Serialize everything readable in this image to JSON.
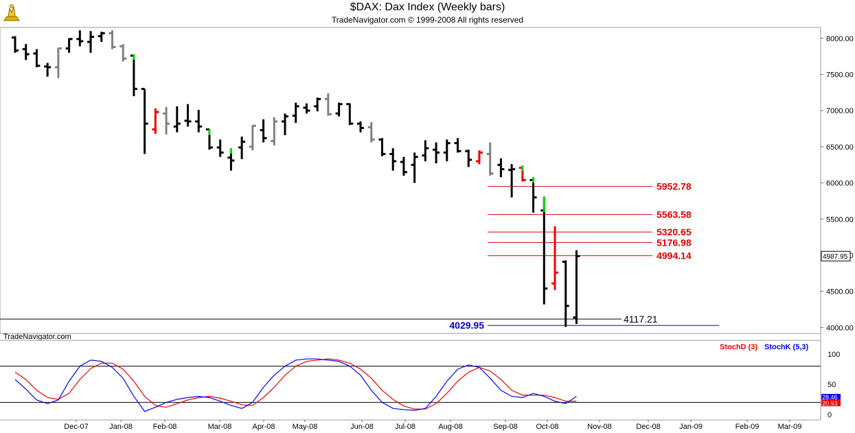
{
  "watermark": "TradeNavigator.com",
  "colors": {
    "up_bar": "#000000",
    "neutral_bar": "#808080",
    "red_bar": "#ee0000",
    "green_mark": "#00dd00",
    "level_red": "#dd0000",
    "level_blue": "#0000cc",
    "stoch_d": "#ee0000",
    "stoch_k": "#0000ee",
    "last_price_box": "#ffffff"
  },
  "chart_data": {
    "title": "$DAX:  Dax Index  (Weekly bars)",
    "subtitle": "TradeNavigator.com © 1999-2008 All rights reserved",
    "type": "ohlc",
    "price_axis": {
      "ticks": [
        "8000.00",
        "7500.00",
        "7000.00",
        "6500.00",
        "6000.00",
        "5500.00",
        "5000.00",
        "4500.00",
        "4000.00"
      ],
      "tick_values": [
        8000,
        7500,
        7000,
        6500,
        6000,
        5500,
        5000,
        4500,
        4000
      ],
      "ylim": [
        3975,
        8150
      ]
    },
    "last_price": "4987.95",
    "x_axis": {
      "labels": [
        "Dec-07",
        "Jan-08",
        "Feb-08",
        "Mar-08",
        "Apr-08",
        "May-08",
        "Jun-08",
        "Jul-08",
        "Aug-08",
        "Sep-08",
        "Oct-08",
        "Nov-08",
        "Dec-08",
        "Jan-09",
        "Feb-09",
        "Mar-09"
      ]
    },
    "bars": [
      {
        "o": 8010,
        "h": 8030,
        "l": 7800,
        "c": 7830,
        "color": "black"
      },
      {
        "o": 7850,
        "h": 7920,
        "l": 7700,
        "c": 7780,
        "color": "black"
      },
      {
        "o": 7790,
        "h": 7850,
        "l": 7600,
        "c": 7620,
        "color": "black"
      },
      {
        "o": 7610,
        "h": 7660,
        "l": 7470,
        "c": 7600,
        "color": "black"
      },
      {
        "o": 7600,
        "h": 7870,
        "l": 7450,
        "c": 7860,
        "color": "gray"
      },
      {
        "o": 7860,
        "h": 8000,
        "l": 7800,
        "c": 7990,
        "color": "black"
      },
      {
        "o": 7990,
        "h": 8110,
        "l": 7890,
        "c": 7960,
        "color": "black"
      },
      {
        "o": 7950,
        "h": 8100,
        "l": 7800,
        "c": 8020,
        "color": "black"
      },
      {
        "o": 8030,
        "h": 8090,
        "l": 7950,
        "c": 8070,
        "color": "black"
      },
      {
        "o": 8070,
        "h": 8110,
        "l": 7850,
        "c": 7880,
        "color": "gray"
      },
      {
        "o": 7890,
        "h": 7920,
        "l": 7680,
        "c": 7720,
        "color": "gray"
      },
      {
        "o": 7760,
        "h": 7780,
        "l": 7200,
        "c": 7300,
        "color": "black"
      },
      {
        "o": 7300,
        "h": 7300,
        "l": 6400,
        "c": 6820,
        "color": "black"
      },
      {
        "o": 6740,
        "h": 7030,
        "l": 6680,
        "c": 6980,
        "color": "red"
      },
      {
        "o": 6960,
        "h": 7050,
        "l": 6670,
        "c": 6820,
        "color": "gray"
      },
      {
        "o": 6780,
        "h": 7060,
        "l": 6700,
        "c": 6820,
        "color": "black"
      },
      {
        "o": 6860,
        "h": 7090,
        "l": 6780,
        "c": 6850,
        "color": "black"
      },
      {
        "o": 6850,
        "h": 7010,
        "l": 6700,
        "c": 6780,
        "color": "black"
      },
      {
        "o": 6740,
        "h": 6740,
        "l": 6460,
        "c": 6490,
        "color": "black"
      },
      {
        "o": 6490,
        "h": 6600,
        "l": 6360,
        "c": 6420,
        "color": "black"
      },
      {
        "o": 6350,
        "h": 6480,
        "l": 6170,
        "c": 6310,
        "color": "black"
      },
      {
        "o": 6490,
        "h": 6640,
        "l": 6330,
        "c": 6570,
        "color": "black"
      },
      {
        "o": 6500,
        "h": 6800,
        "l": 6450,
        "c": 6790,
        "color": "gray"
      },
      {
        "o": 6730,
        "h": 6880,
        "l": 6560,
        "c": 6620,
        "color": "black"
      },
      {
        "o": 6580,
        "h": 6910,
        "l": 6520,
        "c": 6850,
        "color": "gray"
      },
      {
        "o": 6850,
        "h": 6960,
        "l": 6660,
        "c": 6920,
        "color": "black"
      },
      {
        "o": 6930,
        "h": 7110,
        "l": 6830,
        "c": 7060,
        "color": "black"
      },
      {
        "o": 7040,
        "h": 7100,
        "l": 6960,
        "c": 7000,
        "color": "black"
      },
      {
        "o": 7060,
        "h": 7180,
        "l": 6990,
        "c": 7160,
        "color": "black"
      },
      {
        "o": 7160,
        "h": 7240,
        "l": 6930,
        "c": 6950,
        "color": "gray"
      },
      {
        "o": 6960,
        "h": 7110,
        "l": 6920,
        "c": 7090,
        "color": "black"
      },
      {
        "o": 7090,
        "h": 7100,
        "l": 6800,
        "c": 6820,
        "color": "black"
      },
      {
        "o": 6820,
        "h": 6850,
        "l": 6700,
        "c": 6760,
        "color": "black"
      },
      {
        "o": 6770,
        "h": 6840,
        "l": 6560,
        "c": 6600,
        "color": "gray"
      },
      {
        "o": 6600,
        "h": 6620,
        "l": 6370,
        "c": 6400,
        "color": "black"
      },
      {
        "o": 6400,
        "h": 6480,
        "l": 6170,
        "c": 6300,
        "color": "black"
      },
      {
        "o": 6290,
        "h": 6360,
        "l": 6100,
        "c": 6150,
        "color": "black"
      },
      {
        "o": 6250,
        "h": 6420,
        "l": 6000,
        "c": 6360,
        "color": "black"
      },
      {
        "o": 6380,
        "h": 6590,
        "l": 6300,
        "c": 6480,
        "color": "black"
      },
      {
        "o": 6460,
        "h": 6560,
        "l": 6270,
        "c": 6420,
        "color": "black"
      },
      {
        "o": 6420,
        "h": 6600,
        "l": 6300,
        "c": 6550,
        "color": "black"
      },
      {
        "o": 6550,
        "h": 6620,
        "l": 6420,
        "c": 6440,
        "color": "black"
      },
      {
        "o": 6440,
        "h": 6460,
        "l": 6220,
        "c": 6320,
        "color": "black"
      },
      {
        "o": 6300,
        "h": 6450,
        "l": 6260,
        "c": 6420,
        "color": "red"
      },
      {
        "o": 6400,
        "h": 6560,
        "l": 6100,
        "c": 6130,
        "color": "gray"
      },
      {
        "o": 6250,
        "h": 6340,
        "l": 6080,
        "c": 6190,
        "color": "black"
      },
      {
        "o": 6180,
        "h": 6260,
        "l": 5800,
        "c": 6190,
        "color": "black"
      },
      {
        "o": 6210,
        "h": 6240,
        "l": 6020,
        "c": 6040,
        "color": "red"
      },
      {
        "o": 6040,
        "h": 6080,
        "l": 5590,
        "c": 5800,
        "color": "black"
      },
      {
        "o": 5620,
        "h": 5810,
        "l": 4320,
        "c": 4540,
        "color": "black"
      },
      {
        "o": 4610,
        "h": 5400,
        "l": 4520,
        "c": 4760,
        "color": "red"
      },
      {
        "o": 4910,
        "h": 4930,
        "l": 4010,
        "c": 4300,
        "color": "black"
      },
      {
        "o": 4140,
        "h": 5070,
        "l": 4050,
        "c": 4988,
        "color": "black"
      }
    ],
    "green_marks": [
      11,
      18,
      20,
      47,
      48
    ],
    "levels": [
      {
        "label": "5952.78",
        "value": 5952.78,
        "color": "red"
      },
      {
        "label": "5563.58",
        "value": 5563.58,
        "color": "red"
      },
      {
        "label": "5320.65",
        "value": 5320.65,
        "color": "red"
      },
      {
        "label": "5176.98",
        "value": 5176.98,
        "color": "red"
      },
      {
        "label": "4994.14",
        "value": 4994.14,
        "color": "red"
      }
    ],
    "support_level": {
      "label": "4117.21",
      "value": 4117.21
    },
    "low_level": {
      "label": "4029.95",
      "value": 4029.95
    },
    "stochastic": {
      "legend": [
        "StochD (3)",
        "StochK (5,3)"
      ],
      "ticks": [
        "100",
        "50",
        "0"
      ],
      "tick_values": [
        100,
        50,
        0
      ],
      "reference_lines": [
        80,
        20
      ],
      "stoch_d_value": "20.93",
      "stoch_k_value": "28.46",
      "stoch_k": [
        58,
        42,
        24,
        18,
        24,
        55,
        80,
        90,
        88,
        78,
        60,
        30,
        5,
        12,
        20,
        25,
        28,
        30,
        28,
        22,
        15,
        10,
        20,
        45,
        65,
        80,
        90,
        92,
        92,
        90,
        88,
        80,
        65,
        40,
        20,
        10,
        8,
        7,
        10,
        30,
        55,
        75,
        82,
        78,
        60,
        40,
        30,
        28,
        35,
        30,
        22,
        18,
        30
      ],
      "stoch_d": [
        70,
        58,
        40,
        28,
        25,
        35,
        58,
        76,
        85,
        85,
        75,
        55,
        30,
        15,
        12,
        18,
        24,
        28,
        30,
        27,
        22,
        16,
        15,
        28,
        45,
        65,
        80,
        88,
        90,
        92,
        90,
        85,
        75,
        60,
        40,
        25,
        14,
        9,
        9,
        18,
        35,
        55,
        70,
        78,
        72,
        58,
        40,
        32,
        32,
        32,
        28,
        22,
        22
      ]
    }
  }
}
